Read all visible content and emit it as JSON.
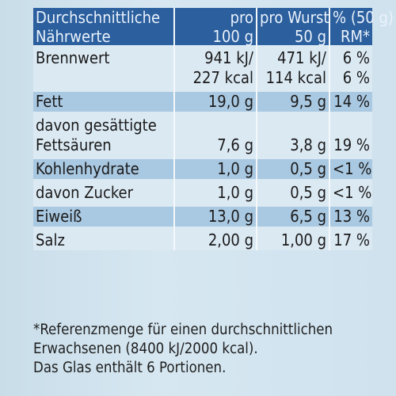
{
  "header": {
    "col1_line1": "Durchschnittliche",
    "col1_line2": "Nährwerte",
    "col2_line1": "pro",
    "col2_line2": "100 g",
    "col3_line1": "pro Wurst",
    "col3_line2": "50 g",
    "col4_line1": "% (50 g)",
    "col4_line2": "RM*"
  },
  "rows": [
    {
      "name": "Brennwert",
      "per100": "941 kJ/",
      "perWurst": "471 kJ/",
      "rm": "6 %"
    },
    {
      "name": "",
      "per100": "227 kcal",
      "perWurst": "114 kcal",
      "rm": "6 %"
    },
    {
      "name": "Fett",
      "per100": "19,0 g",
      "perWurst": "9,5 g",
      "rm": "14 %"
    },
    {
      "name": "davon gesättigte",
      "per100": "",
      "perWurst": "",
      "rm": ""
    },
    {
      "name": "Fettsäuren",
      "per100": "7,6 g",
      "perWurst": "3,8 g",
      "rm": "19 %"
    },
    {
      "name": "Kohlenhydrate",
      "per100": "1,0 g",
      "perWurst": "0,5 g",
      "rm": "<1 %"
    },
    {
      "name": "davon Zucker",
      "per100": "1,0 g",
      "perWurst": "0,5 g",
      "rm": "<1 %"
    },
    {
      "name": "Eiweiß",
      "per100": "13,0 g",
      "perWurst": "6,5 g",
      "rm": "13 %"
    },
    {
      "name": "Salz",
      "per100": "2,00 g",
      "perWurst": "1,00 g",
      "rm": "17 %"
    }
  ],
  "footnote": {
    "line1": "*Referenzmenge für einen durchschnittlichen",
    "line2": "Erwachsenen (8400 kJ/2000 kcal).",
    "line3": "Das Glas enthält 6 Portionen."
  }
}
